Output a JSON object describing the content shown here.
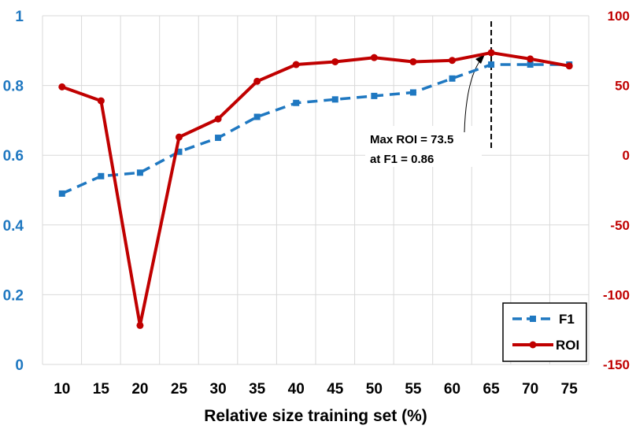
{
  "chart_data": {
    "type": "line",
    "title": "",
    "xlabel": "Relative size training set (%)",
    "ylabel_left": "",
    "ylabel_right": "",
    "x": [
      10,
      15,
      20,
      25,
      30,
      35,
      40,
      45,
      50,
      55,
      60,
      65,
      70,
      75
    ],
    "x_tick_labels": [
      "10",
      "15",
      "20",
      "25",
      "30",
      "35",
      "40",
      "45",
      "50",
      "55",
      "60",
      "65",
      "70",
      "75"
    ],
    "y_left": {
      "lim": [
        0,
        1
      ],
      "ticks": [
        0,
        0.2,
        0.4,
        0.6,
        0.8,
        1
      ],
      "tick_labels": [
        "0",
        "0.2",
        "0.4",
        "0.6",
        "0.8",
        "1"
      ]
    },
    "y_right": {
      "lim": [
        -150,
        100
      ],
      "ticks": [
        -150,
        -100,
        -50,
        0,
        50,
        100
      ],
      "tick_labels": [
        "-150",
        "-100",
        "-50",
        "0",
        "50",
        "100"
      ]
    },
    "grid": true,
    "legend_position": "bottom-right",
    "series": [
      {
        "name": "F1",
        "axis": "left",
        "style": "dashed",
        "marker": "square",
        "color": "#1f78c1",
        "values": [
          0.49,
          0.54,
          0.55,
          0.61,
          0.65,
          0.71,
          0.75,
          0.76,
          0.77,
          0.78,
          0.82,
          0.86,
          0.86,
          0.86
        ]
      },
      {
        "name": "ROI",
        "axis": "right",
        "style": "solid",
        "marker": "circle",
        "color": "#c00000",
        "values": [
          49,
          39,
          -122,
          13,
          26,
          53,
          65,
          67,
          70,
          67,
          68,
          73.5,
          69,
          64
        ]
      }
    ],
    "annotation": {
      "line1": "Max ROI = 73.5",
      "line2": "at F1 = 0.86",
      "x": 65
    }
  },
  "colors": {
    "f1": "#1f78c1",
    "roi": "#c00000",
    "left_axis_text": "#1f78c1",
    "right_axis_text": "#c00000",
    "grid": "#d9d9d9"
  }
}
